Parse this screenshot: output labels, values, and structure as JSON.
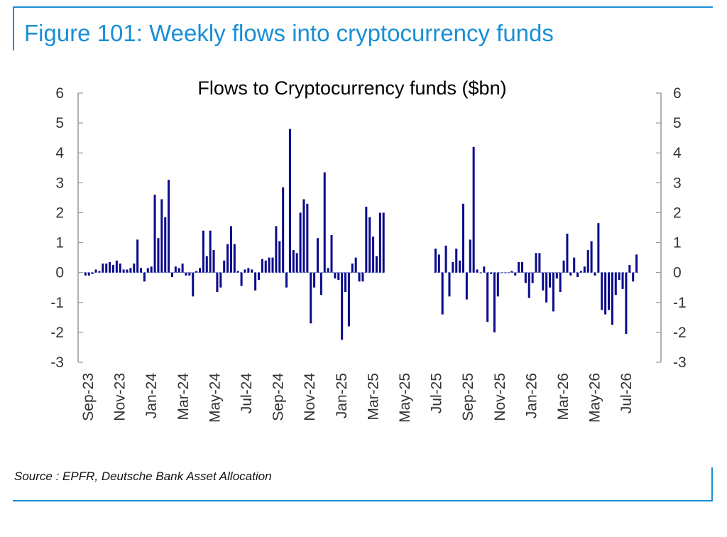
{
  "figure": {
    "title": "Figure 101: Weekly flows into cryptocurrency funds",
    "source": "Source : EPFR, Deutsche Bank Asset Allocation"
  },
  "colors": {
    "accent": "#1a8fd6",
    "bar": "#0b0b8c",
    "axis": "#999999"
  },
  "chart_data": {
    "type": "bar",
    "title": "Flows to Cryptocurrency funds ($bn)",
    "xlabel": "",
    "ylabel": "",
    "ylim": [
      -3,
      6
    ],
    "yticks": [
      6,
      5,
      4,
      3,
      2,
      1,
      0,
      -1,
      -2,
      -3
    ],
    "y2ticks": [
      6,
      5,
      4,
      3,
      2,
      1,
      0,
      -1,
      -2,
      -3
    ],
    "grid": false,
    "legend": "none",
    "x_tick_labels": [
      "Sep-23",
      "Nov-23",
      "Jan-24",
      "Mar-24",
      "May-24",
      "Jul-24",
      "Sep-24",
      "Nov-24",
      "Jan-25",
      "Mar-25",
      "May-25",
      "Jul-25",
      "Sep-25",
      "Nov-25",
      "Jan-26",
      "Mar-26",
      "May-26",
      "Jul-26"
    ],
    "series": [
      {
        "values": [
          -0.1,
          -0.1,
          -0.05,
          0.1,
          0.05,
          0.3,
          0.3,
          0.35,
          0.25,
          0.4,
          0.3,
          0.1,
          0.1,
          0.15,
          0.3,
          1.1,
          0.15,
          -0.3,
          0.15,
          0.2,
          2.6,
          1.15,
          2.45,
          1.85,
          3.1,
          -0.15,
          0.2,
          0.15,
          0.3,
          -0.1,
          -0.1,
          -0.8,
          0.05,
          0.15,
          1.4,
          0.55,
          1.4,
          0.75,
          -0.65,
          -0.5,
          0.4,
          0.95,
          1.55,
          0.95,
          0.05,
          -0.45,
          0.1,
          0.15,
          0.1,
          -0.6,
          -0.25,
          0.45,
          0.4,
          0.5,
          0.5,
          1.55,
          1.05,
          2.85,
          -0.5,
          4.8,
          0.75,
          0.65,
          2.0,
          2.45,
          2.3,
          -1.7,
          -0.5,
          1.15,
          -0.75,
          3.35,
          0.15,
          1.25,
          -0.2,
          -0.25,
          -2.25,
          -0.65,
          -1.8,
          0.3,
          0.5,
          -0.3,
          -0.3,
          2.2,
          1.85,
          1.2,
          0.55,
          2.0,
          2.0,
          null,
          null,
          null,
          null,
          null,
          null,
          null,
          null,
          null,
          null,
          null,
          null,
          null,
          null,
          0.8,
          0.6,
          -1.4,
          0.9,
          -0.8,
          0.35,
          0.8,
          0.4,
          2.3,
          -0.9,
          1.1,
          4.2,
          0.1,
          0.0,
          0.2,
          -1.65,
          -0.05,
          -2.0,
          -0.8,
          0.0,
          0.0,
          0.0,
          0.05,
          -0.1,
          0.35,
          0.35,
          -0.35,
          -0.85,
          -0.35,
          0.65,
          0.65,
          -0.6,
          -1.0,
          -0.5,
          -1.3,
          -0.2,
          -0.65,
          0.4,
          1.3,
          -0.1,
          0.5,
          -0.15,
          0.05,
          0.2,
          0.75,
          1.05,
          -0.1,
          1.65,
          -1.25,
          -1.4,
          -1.25,
          -1.75,
          -0.75,
          -0.25,
          -0.55,
          -2.05,
          0.25,
          -0.3,
          0.6
        ]
      }
    ]
  }
}
